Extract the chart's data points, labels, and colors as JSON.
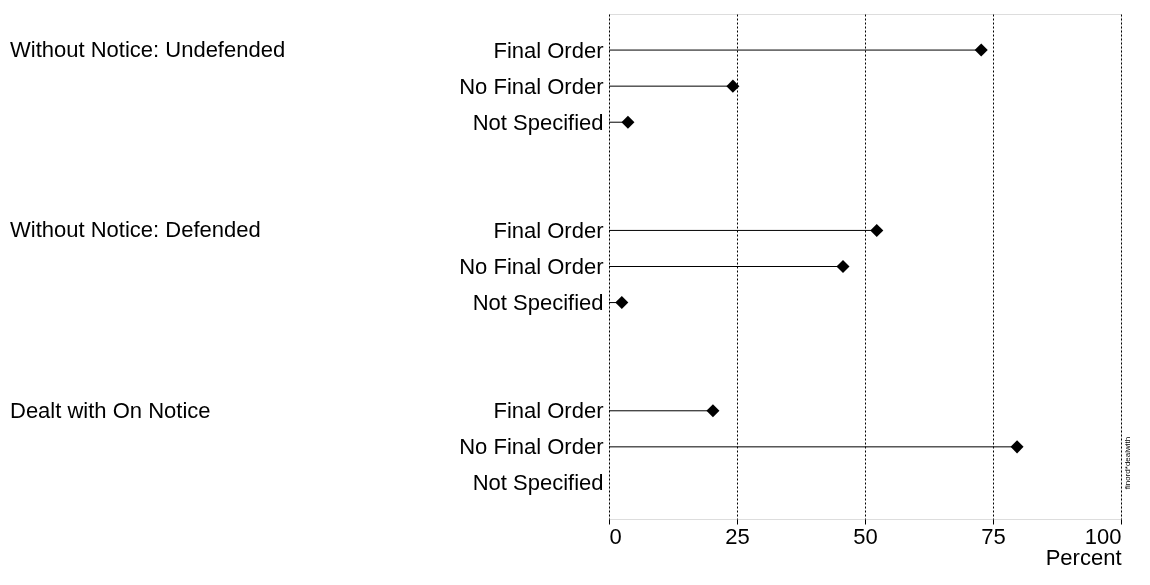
{
  "chart_data": {
    "type": "lollipop",
    "orientation": "horizontal",
    "xlabel": "Percent",
    "categories": [
      "Final Order",
      "No Final Order",
      "Not Specified",
      null,
      null,
      "Final Order",
      "No Final Order",
      "Not Specified",
      null,
      null,
      "Final Order",
      "No Final Order",
      "Not Specified"
    ],
    "values": [
      72.7,
      24.2,
      3.7,
      null,
      null,
      52.3,
      45.7,
      2.5,
      null,
      null,
      20.3,
      79.7,
      null
    ],
    "color": "#000000",
    "marker": "diamond",
    "xlim": [
      0,
      100
    ],
    "xticks": [
      0,
      25,
      50,
      75,
      100
    ],
    "grid": "x",
    "annotations": [
      "Without Notice: Undefended",
      "Without Notice: Defended",
      "Dealt with On Notice",
      "finord*dealwith"
    ]
  }
}
